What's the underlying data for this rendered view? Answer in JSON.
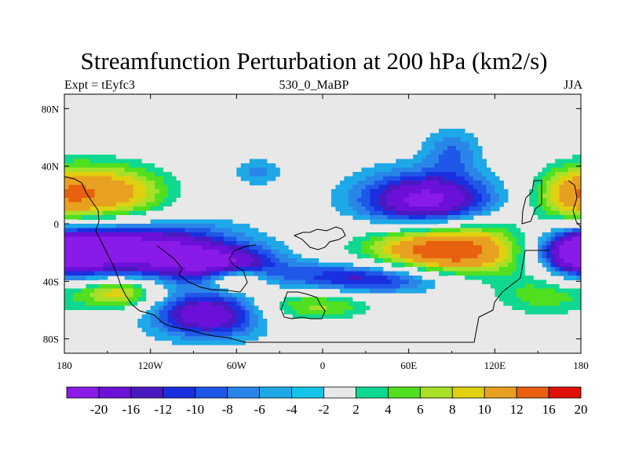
{
  "chart_data": {
    "type": "heatmap",
    "title": "Streamfunction Perturbation at 200 hPa (km2/s)",
    "left_string": "Expt = tEyfc3",
    "center_string": "530_0_MaBP",
    "right_string": "JJA",
    "xlabel": "",
    "ylabel": "",
    "xlim": [
      -180,
      180
    ],
    "ylim": [
      -90,
      90
    ],
    "x_ticks": [
      {
        "value": -180,
        "label": "180"
      },
      {
        "value": -120,
        "label": "120W"
      },
      {
        "value": -60,
        "label": "60W"
      },
      {
        "value": 0,
        "label": "0"
      },
      {
        "value": 60,
        "label": "60E"
      },
      {
        "value": 120,
        "label": "120E"
      },
      {
        "value": 180,
        "label": "180"
      }
    ],
    "y_ticks": [
      {
        "value": 80,
        "label": "80N"
      },
      {
        "value": 40,
        "label": "40N"
      },
      {
        "value": 0,
        "label": "0"
      },
      {
        "value": -40,
        "label": "40S"
      },
      {
        "value": -80,
        "label": "80S"
      }
    ],
    "contour_levels": [
      -20,
      -16,
      -12,
      -10,
      -8,
      -6,
      -4,
      -2,
      2,
      4,
      6,
      8,
      10,
      12,
      16,
      20
    ],
    "colors": [
      "#8a1ae8",
      "#6a10d8",
      "#4a18c0",
      "#1a30e0",
      "#1f58e8",
      "#2a85e8",
      "#1ea8e8",
      "#14c4e8",
      "#e8e8e8",
      "#10d890",
      "#50e020",
      "#a8e028",
      "#e0d010",
      "#e8a020",
      "#e86010",
      "#e01008"
    ],
    "missing_color": "#e8e8e8",
    "anomalies": [
      {
        "lon": -143,
        "lat": 21,
        "sx": 30,
        "sy": 16,
        "amp": 12.5
      },
      {
        "lon": -135,
        "lat": -18,
        "sx": 48,
        "sy": 13,
        "amp": -21
      },
      {
        "lon": -70,
        "lat": -28,
        "sx": 26,
        "sy": 8,
        "amp": -13
      },
      {
        "lon": -142,
        "lat": -48,
        "sx": 20,
        "sy": 8,
        "amp": 12
      },
      {
        "lon": -60,
        "lat": -38,
        "sx": 14,
        "sy": 6,
        "amp": 11
      },
      {
        "lon": -80,
        "lat": -63,
        "sx": 26,
        "sy": 11,
        "amp": -16
      },
      {
        "lon": -5,
        "lat": -56,
        "sx": 32,
        "sy": 9,
        "amp": 9
      },
      {
        "lon": 35,
        "lat": -38,
        "sx": 45,
        "sy": 8,
        "amp": -14
      },
      {
        "lon": 88,
        "lat": -18,
        "sx": 42,
        "sy": 15,
        "amp": 21
      },
      {
        "lon": 72,
        "lat": 15,
        "sx": 32,
        "sy": 14,
        "amp": -19
      },
      {
        "lon": 90,
        "lat": 50,
        "sx": 13,
        "sy": 11,
        "amp": -6
      },
      {
        "lon": -45,
        "lat": 36,
        "sx": 11,
        "sy": 6,
        "amp": -5
      },
      {
        "lon": -10,
        "lat": 54,
        "sx": 9,
        "sy": 4,
        "amp": 2.8
      },
      {
        "lon": 175,
        "lat": 20,
        "sx": 22,
        "sy": 16,
        "amp": 11
      },
      {
        "lon": 178,
        "lat": -20,
        "sx": 18,
        "sy": 11,
        "amp": -15
      },
      {
        "lon": 155,
        "lat": -50,
        "sx": 28,
        "sy": 12,
        "amp": 7
      }
    ]
  }
}
